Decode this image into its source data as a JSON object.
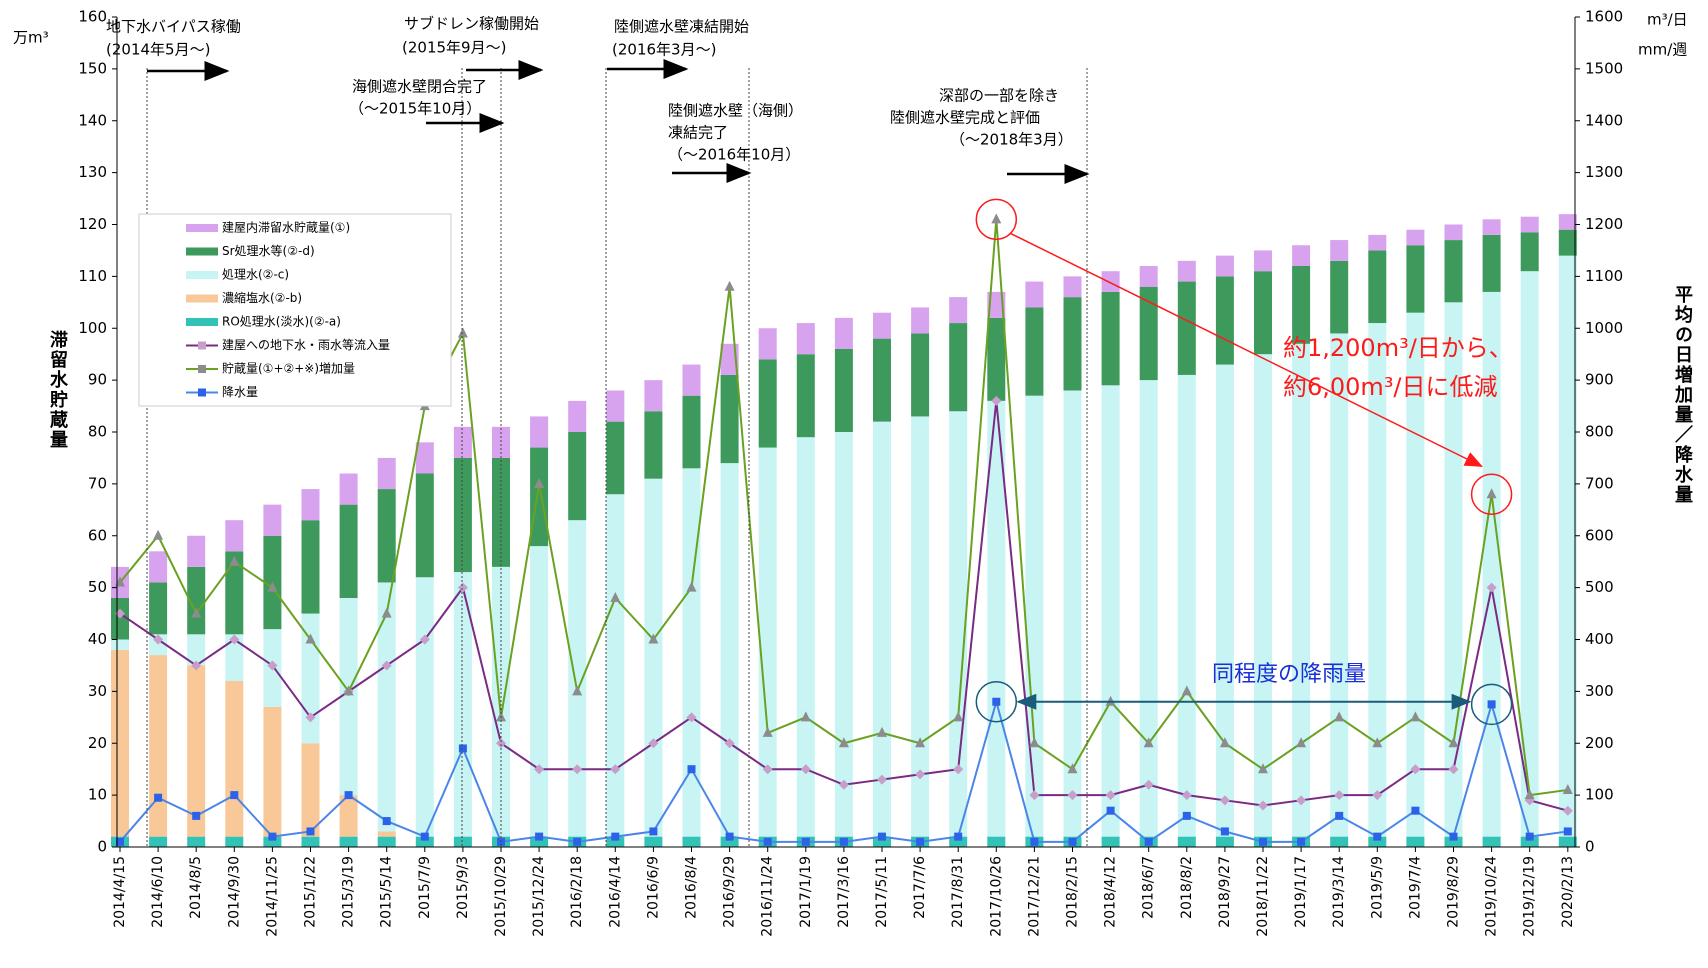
{
  "chart_data": {
    "type": "combo",
    "y_title": "滞留水貯蔵量",
    "y_unit": "万m³",
    "y2_title": "平均の日増加量／降水量",
    "y2_units": [
      "m³/日",
      "mm/週"
    ],
    "categories": [
      "2014/4/15",
      "2014/6/10",
      "2014/8/5",
      "2014/9/30",
      "2014/11/25",
      "2015/1/22",
      "2015/3/19",
      "2015/5/14",
      "2015/7/9",
      "2015/9/3",
      "2015/10/29",
      "2015/12/24",
      "2016/2/18",
      "2016/4/14",
      "2016/6/9",
      "2016/8/4",
      "2016/9/29",
      "2016/11/24",
      "2017/1/19",
      "2017/3/16",
      "2017/5/11",
      "2017/7/6",
      "2017/8/31",
      "2017/10/26",
      "2017/12/21",
      "2018/2/15",
      "2018/4/12",
      "2018/6/7",
      "2018/8/2",
      "2018/9/27",
      "2018/11/22",
      "2019/1/17",
      "2019/3/14",
      "2019/5/9",
      "2019/7/4",
      "2019/8/29",
      "2019/10/24",
      "2019/12/19",
      "2020/2/13"
    ],
    "ylim": [
      0,
      160
    ],
    "yticks": [
      0,
      10,
      20,
      30,
      40,
      50,
      60,
      70,
      80,
      90,
      100,
      110,
      120,
      130,
      140,
      150,
      160
    ],
    "y2lim": [
      0,
      1600
    ],
    "y2ticks": [
      0,
      100,
      200,
      300,
      400,
      500,
      600,
      700,
      800,
      900,
      1000,
      1100,
      1200,
      1300,
      1400,
      1500,
      1600
    ],
    "series": [
      {
        "name": "建屋内滞留水貯蔵量(①)",
        "type": "bar",
        "color": "#d7a2ee",
        "values": [
          6,
          6,
          6,
          6,
          6,
          6,
          6,
          6,
          6,
          6,
          6,
          6,
          6,
          6,
          6,
          6,
          6,
          6,
          6,
          6,
          5,
          5,
          5,
          5,
          5,
          4,
          4,
          4,
          4,
          4,
          4,
          4,
          4,
          3,
          3,
          3,
          3,
          3,
          3
        ]
      },
      {
        "name": "Sr処理水等(②-d)",
        "type": "bar",
        "color": "#3e9a5c",
        "values": [
          8,
          10,
          13,
          16,
          18,
          18,
          18,
          18,
          20,
          22,
          21,
          19,
          17,
          14,
          13,
          14,
          17,
          17,
          16,
          16,
          16,
          16,
          17,
          16,
          17,
          18,
          18,
          18,
          18,
          17,
          16,
          15,
          14,
          14,
          13,
          12,
          11,
          7.5,
          5
        ]
      },
      {
        "name": "処理水(②-c)",
        "type": "bar",
        "color": "#c8f4f4",
        "values": [
          2,
          4,
          6,
          9,
          15,
          25,
          38,
          48,
          50,
          51,
          52,
          56,
          61,
          66,
          69,
          71,
          72,
          75,
          77,
          78,
          80,
          81,
          82,
          84,
          85,
          86,
          87,
          88,
          89,
          91,
          93,
          95,
          97,
          99,
          101,
          103,
          105,
          109,
          112
        ]
      },
      {
        "name": "濃縮塩水(②-b)",
        "type": "bar",
        "color": "#f9c898",
        "values": [
          36,
          35,
          33,
          30,
          25,
          18,
          8,
          1,
          0,
          0,
          0,
          0,
          0,
          0,
          0,
          0,
          0,
          0,
          0,
          0,
          0,
          0,
          0,
          0,
          0,
          0,
          0,
          0,
          0,
          0,
          0,
          0,
          0,
          0,
          0,
          0,
          0,
          0,
          0
        ]
      },
      {
        "name": "RO処理水(淡水)(②-a)",
        "type": "bar",
        "color": "#33c2b6",
        "values": [
          2,
          2,
          2,
          2,
          2,
          2,
          2,
          2,
          2,
          2,
          2,
          2,
          2,
          2,
          2,
          2,
          2,
          2,
          2,
          2,
          2,
          2,
          2,
          2,
          2,
          2,
          2,
          2,
          2,
          2,
          2,
          2,
          2,
          2,
          2,
          2,
          2,
          2,
          2
        ]
      },
      {
        "name": "建屋への地下水・雨水等流入量",
        "type": "line",
        "axis": "y2",
        "color": "#7b2a84",
        "marker": "diamond",
        "marker_color": "#c79ec9",
        "values": [
          450,
          400,
          350,
          400,
          350,
          250,
          300,
          350,
          400,
          500,
          200,
          150,
          150,
          150,
          200,
          250,
          200,
          150,
          150,
          120,
          130,
          140,
          150,
          860,
          100,
          100,
          100,
          120,
          100,
          90,
          80,
          90,
          100,
          100,
          150,
          150,
          500,
          90,
          70
        ]
      },
      {
        "name": "貯蔵量(①+②+※)増加量",
        "type": "line",
        "axis": "y2",
        "color": "#6aa121",
        "marker": "triangle",
        "marker_color": "#8c8c8c",
        "values": [
          510,
          600,
          450,
          550,
          500,
          400,
          300,
          450,
          850,
          990,
          250,
          700,
          300,
          480,
          400,
          500,
          1080,
          220,
          250,
          200,
          220,
          200,
          250,
          1210,
          200,
          150,
          280,
          200,
          300,
          200,
          150,
          200,
          250,
          200,
          250,
          200,
          680,
          100,
          110
        ]
      },
      {
        "name": "降水量",
        "type": "line",
        "axis": "y2",
        "color": "#4a86e8",
        "marker": "square",
        "marker_color": "#2b62e8",
        "values": [
          10,
          95,
          60,
          100,
          20,
          30,
          100,
          50,
          20,
          190,
          10,
          20,
          10,
          20,
          30,
          150,
          20,
          10,
          10,
          10,
          20,
          10,
          20,
          280,
          10,
          10,
          70,
          10,
          60,
          30,
          10,
          10,
          60,
          20,
          70,
          20,
          275,
          20,
          30
        ]
      }
    ],
    "annotations": [
      {
        "lines": [
          "地下水バイパス稼働",
          "(2014年5月～)"
        ]
      },
      {
        "lines": [
          "サブドレン稼働開始",
          "(2015年9月～)"
        ]
      },
      {
        "lines": [
          "陸側遮水壁凍結開始",
          "(2016年3月～)"
        ]
      },
      {
        "lines": [
          "海側遮水壁閉合完了",
          "（～2015年10月）"
        ]
      },
      {
        "lines": [
          "陸側遮水壁（海側）",
          "凍結完了",
          "（～2016年10月）"
        ]
      },
      {
        "lines": [
          "深部の一部を除き",
          "陸側遮水壁完成と評価",
          "（～2018年3月）"
        ]
      }
    ],
    "callout": [
      "約1,200m³/日から、",
      "約6,00m³/日に低減"
    ],
    "rain_note": "同程度の降雨量"
  }
}
